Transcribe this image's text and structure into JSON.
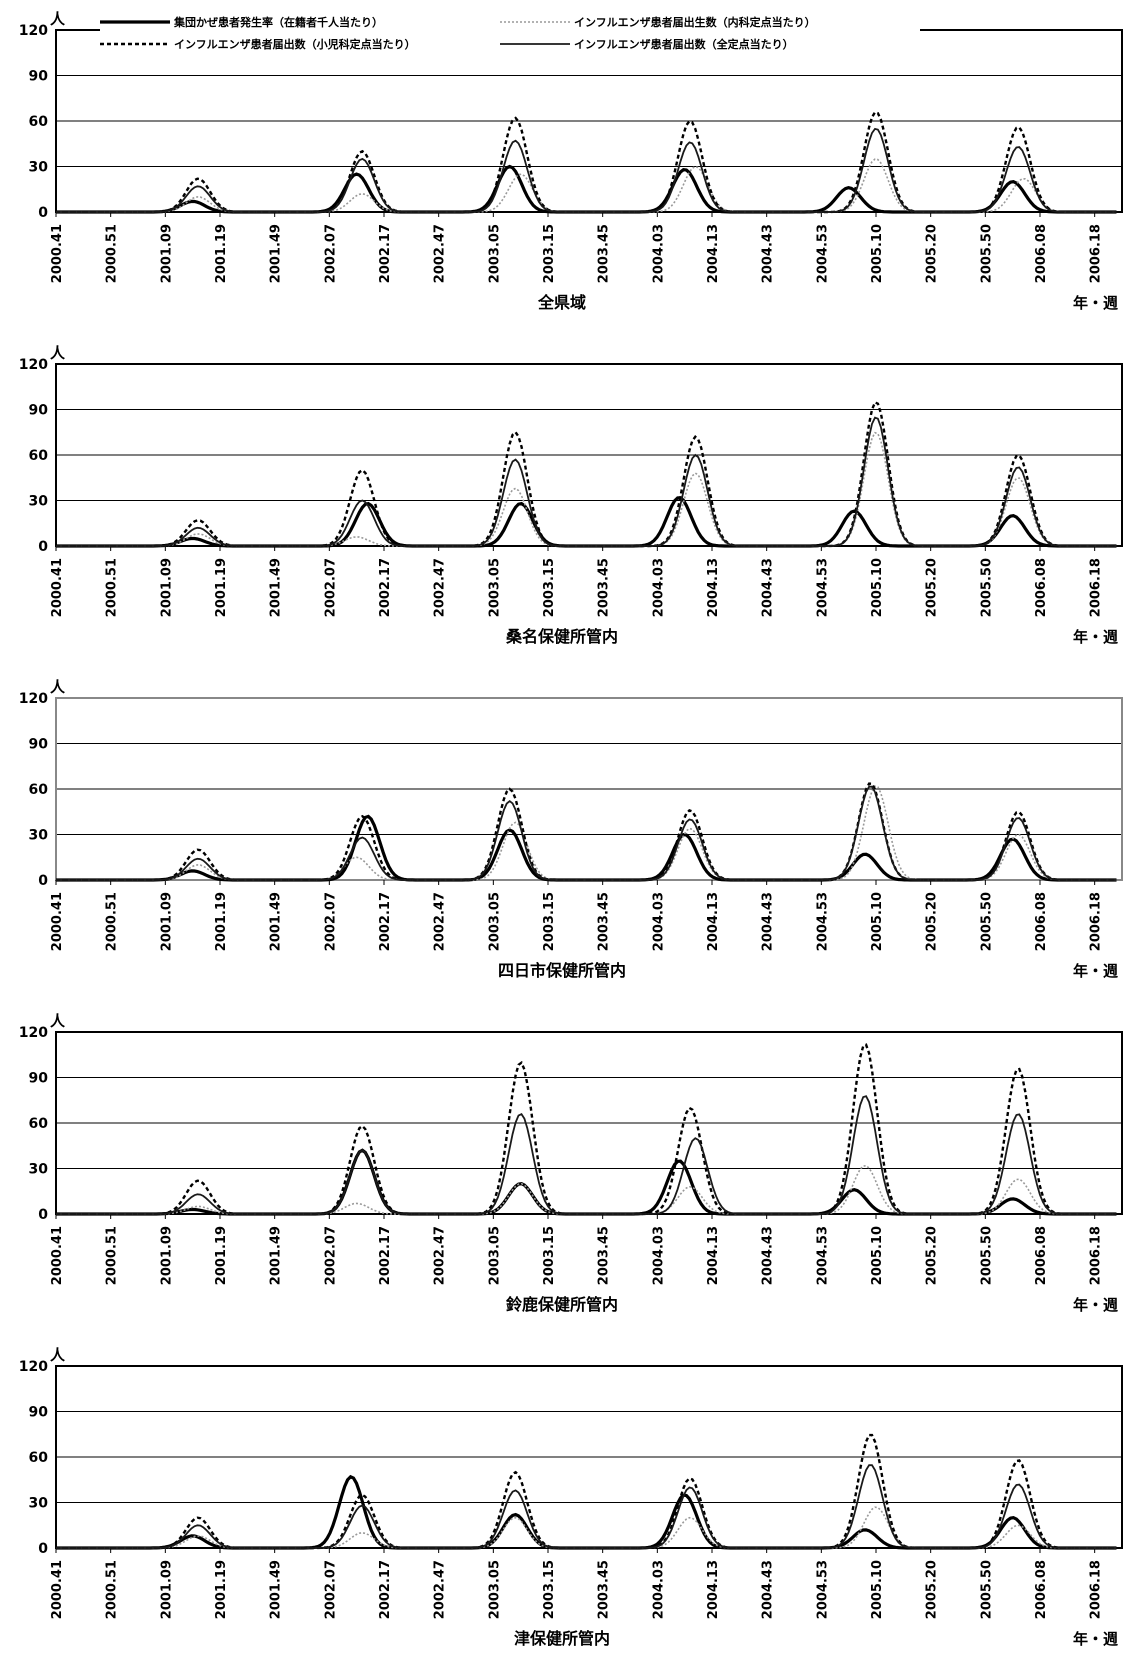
{
  "chart_data": [
    {
      "type": "line",
      "title": "全県域",
      "xlabel": "年・週",
      "ylabel": "人",
      "ylim": [
        0,
        120
      ],
      "yticks": [
        "0",
        "30",
        "60",
        "90",
        "120"
      ],
      "x_ticks": [
        "2000.41",
        "2000.51",
        "2001.09",
        "2001.19",
        "2001.49",
        "2002.07",
        "2002.17",
        "2002.47",
        "2003.05",
        "2003.15",
        "2003.45",
        "2004.03",
        "2004.13",
        "2004.43",
        "2004.53",
        "2005.10",
        "2005.20",
        "2005.50",
        "2006.08",
        "2006.18"
      ],
      "grid": true,
      "legend": "top",
      "series": [
        {
          "name": "集団かぜ患者発生率（在籍者千人当たり）",
          "peaks": [
            [
              2.5,
              7
            ],
            [
              5.5,
              25
            ],
            [
              8.3,
              30
            ],
            [
              11.5,
              28
            ],
            [
              14.5,
              16
            ],
            [
              17.5,
              20
            ]
          ]
        },
        {
          "name": "インフルエンザ患者届出生数（内科定点当たり）",
          "peaks": [
            [
              2.6,
              10
            ],
            [
              5.6,
              12
            ],
            [
              8.5,
              25
            ],
            [
              11.7,
              30
            ],
            [
              15.0,
              35
            ],
            [
              17.7,
              22
            ]
          ]
        },
        {
          "name": "インフルエンザ患者届出数（小児科定点当たり）",
          "peaks": [
            [
              2.6,
              22
            ],
            [
              5.6,
              40
            ],
            [
              8.4,
              62
            ],
            [
              11.6,
              60
            ],
            [
              15.0,
              66
            ],
            [
              17.6,
              56
            ]
          ]
        },
        {
          "name": "インフルエンザ患者届出数（全定点当たり）",
          "peaks": [
            [
              2.6,
              17
            ],
            [
              5.6,
              35
            ],
            [
              8.4,
              47
            ],
            [
              11.6,
              46
            ],
            [
              15.0,
              55
            ],
            [
              17.6,
              43
            ]
          ]
        }
      ]
    },
    {
      "type": "line",
      "title": "桑名保健所管内",
      "xlabel": "年・週",
      "ylabel": "人",
      "ylim": [
        0,
        120
      ],
      "yticks": [
        "0",
        "30",
        "60",
        "90",
        "120"
      ],
      "x_ticks": [
        "2000.41",
        "2000.51",
        "2001.09",
        "2001.19",
        "2001.49",
        "2002.07",
        "2002.17",
        "2002.47",
        "2003.05",
        "2003.15",
        "2003.45",
        "2004.03",
        "2004.13",
        "2004.43",
        "2004.53",
        "2005.10",
        "2005.20",
        "2005.50",
        "2006.08",
        "2006.18"
      ],
      "grid": true,
      "series": [
        {
          "name": "集団かぜ患者発生率（在籍者千人当たり）",
          "peaks": [
            [
              2.5,
              5
            ],
            [
              5.7,
              28
            ],
            [
              8.5,
              28
            ],
            [
              11.4,
              32
            ],
            [
              14.6,
              23
            ],
            [
              17.5,
              20
            ]
          ]
        },
        {
          "name": "インフルエンザ患者届出生数（内科定点当たり）",
          "peaks": [
            [
              2.6,
              8
            ],
            [
              5.5,
              6
            ],
            [
              8.4,
              38
            ],
            [
              11.7,
              48
            ],
            [
              15.0,
              75
            ],
            [
              17.6,
              45
            ]
          ]
        },
        {
          "name": "インフルエンザ患者届出数（小児科定点当たり）",
          "peaks": [
            [
              2.6,
              17
            ],
            [
              5.6,
              50
            ],
            [
              8.4,
              75
            ],
            [
              11.7,
              72
            ],
            [
              15.0,
              95
            ],
            [
              17.6,
              60
            ]
          ]
        },
        {
          "name": "インフルエンザ患者届出数（全定点当たり）",
          "peaks": [
            [
              2.6,
              12
            ],
            [
              5.6,
              30
            ],
            [
              8.4,
              57
            ],
            [
              11.7,
              60
            ],
            [
              15.0,
              85
            ],
            [
              17.6,
              52
            ]
          ]
        }
      ]
    },
    {
      "type": "line",
      "title": "四日市保健所管内",
      "xlabel": "年・週",
      "ylabel": "人",
      "ylim": [
        0,
        120
      ],
      "yticks": [
        "0",
        "30",
        "60",
        "90",
        "120"
      ],
      "x_ticks": [
        "2000.41",
        "2000.51",
        "2001.09",
        "2001.19",
        "2001.49",
        "2002.07",
        "2002.17",
        "2002.47",
        "2003.05",
        "2003.15",
        "2003.45",
        "2004.03",
        "2004.13",
        "2004.43",
        "2004.53",
        "2005.10",
        "2005.20",
        "2005.50",
        "2006.08",
        "2006.18"
      ],
      "grid": true,
      "series": [
        {
          "name": "集団かぜ患者発生率（在籍者千人当たり）",
          "peaks": [
            [
              2.5,
              6
            ],
            [
              5.7,
              42
            ],
            [
              8.3,
              33
            ],
            [
              11.5,
              30
            ],
            [
              14.8,
              17
            ],
            [
              17.5,
              27
            ]
          ]
        },
        {
          "name": "インフルエンザ患者届出生数（内科定点当たり）",
          "peaks": [
            [
              2.6,
              10
            ],
            [
              5.5,
              15
            ],
            [
              8.4,
              38
            ],
            [
              11.6,
              34
            ],
            [
              15.0,
              62
            ],
            [
              17.6,
              30
            ]
          ]
        },
        {
          "name": "インフルエンザ患者届出数（小児科定点当たり）",
          "peaks": [
            [
              2.6,
              20
            ],
            [
              5.6,
              42
            ],
            [
              8.3,
              60
            ],
            [
              11.6,
              46
            ],
            [
              14.9,
              64
            ],
            [
              17.6,
              45
            ]
          ]
        },
        {
          "name": "インフルエンザ患者届出数（全定点当たり）",
          "peaks": [
            [
              2.6,
              14
            ],
            [
              5.6,
              28
            ],
            [
              8.3,
              52
            ],
            [
              11.6,
              40
            ],
            [
              14.9,
              62
            ],
            [
              17.6,
              41
            ]
          ]
        }
      ]
    },
    {
      "type": "line",
      "title": "鈴鹿保健所管内",
      "xlabel": "年・週",
      "ylabel": "人",
      "ylim": [
        0,
        120
      ],
      "yticks": [
        "0",
        "30",
        "60",
        "90",
        "120"
      ],
      "x_ticks": [
        "2000.41",
        "2000.51",
        "2001.09",
        "2001.19",
        "2001.49",
        "2002.07",
        "2002.17",
        "2002.47",
        "2003.05",
        "2003.15",
        "2003.45",
        "2004.03",
        "2004.13",
        "2004.43",
        "2004.53",
        "2005.10",
        "2005.20",
        "2005.50",
        "2006.08",
        "2006.18"
      ],
      "grid": true,
      "series": [
        {
          "name": "集団かぜ患者発生率（在籍者千人当たり）",
          "peaks": [
            [
              2.5,
              3
            ],
            [
              5.6,
              42
            ],
            [
              8.5,
              20
            ],
            [
              11.4,
              35
            ],
            [
              14.6,
              16
            ],
            [
              17.5,
              10
            ]
          ]
        },
        {
          "name": "インフルエンザ患者届出生数（内科定点当たり）",
          "peaks": [
            [
              2.6,
              5
            ],
            [
              5.5,
              7
            ],
            [
              8.5,
              20
            ],
            [
              11.6,
              18
            ],
            [
              14.8,
              32
            ],
            [
              17.6,
              23
            ]
          ]
        },
        {
          "name": "インフルエンザ患者届出数（小児科定点当たり）",
          "peaks": [
            [
              2.6,
              22
            ],
            [
              5.6,
              58
            ],
            [
              8.5,
              100
            ],
            [
              11.6,
              70
            ],
            [
              14.8,
              112
            ],
            [
              17.6,
              96
            ]
          ]
        },
        {
          "name": "インフルエンザ患者届出数（全定点当たり）",
          "peaks": [
            [
              2.6,
              13
            ],
            [
              5.6,
              42
            ],
            [
              8.5,
              66
            ],
            [
              11.7,
              50
            ],
            [
              14.8,
              78
            ],
            [
              17.6,
              66
            ]
          ]
        }
      ]
    },
    {
      "type": "line",
      "title": "津保健所管内",
      "xlabel": "年・週",
      "ylabel": "人",
      "ylim": [
        0,
        120
      ],
      "yticks": [
        "0",
        "30",
        "60",
        "90",
        "120"
      ],
      "x_ticks": [
        "2000.41",
        "2000.51",
        "2001.09",
        "2001.19",
        "2001.49",
        "2002.07",
        "2002.17",
        "2002.47",
        "2003.05",
        "2003.15",
        "2003.45",
        "2004.03",
        "2004.13",
        "2004.43",
        "2004.53",
        "2005.10",
        "2005.20",
        "2005.50",
        "2006.08",
        "2006.18"
      ],
      "grid": true,
      "series": [
        {
          "name": "集団かぜ患者発生率（在籍者千人当たり）",
          "peaks": [
            [
              2.5,
              8
            ],
            [
              5.4,
              47
            ],
            [
              8.4,
              22
            ],
            [
              11.5,
              35
            ],
            [
              14.8,
              12
            ],
            [
              17.5,
              20
            ]
          ]
        },
        {
          "name": "インフルエンザ患者届出生数（内科定点当たり）",
          "peaks": [
            [
              2.6,
              8
            ],
            [
              5.6,
              10
            ],
            [
              8.4,
              20
            ],
            [
              11.6,
              20
            ],
            [
              15.0,
              27
            ],
            [
              17.6,
              15
            ]
          ]
        },
        {
          "name": "インフルエンザ患者届出数（小児科定点当たり）",
          "peaks": [
            [
              2.6,
              20
            ],
            [
              5.6,
              35
            ],
            [
              8.4,
              50
            ],
            [
              11.6,
              46
            ],
            [
              14.9,
              75
            ],
            [
              17.6,
              58
            ]
          ]
        },
        {
          "name": "インフルエンザ患者届出数（全定点当たり）",
          "peaks": [
            [
              2.6,
              15
            ],
            [
              5.6,
              28
            ],
            [
              8.4,
              38
            ],
            [
              11.6,
              40
            ],
            [
              14.9,
              55
            ],
            [
              17.6,
              42
            ]
          ]
        }
      ]
    }
  ],
  "legend_items": [
    {
      "label": "集団かぜ患者発生率（在籍者千人当たり）"
    },
    {
      "label": "インフルエンザ患者届出生数（内科定点当たり）"
    },
    {
      "label": "インフルエンザ患者届出数（小児科定点当たり）"
    },
    {
      "label": "インフルエンザ患者届出数（全定点当たり）"
    }
  ],
  "colors": {
    "series": [
      "#000000",
      "#999999",
      "#000000",
      "#1a1a1a"
    ],
    "axis": "#000000",
    "grid": "#000000"
  }
}
